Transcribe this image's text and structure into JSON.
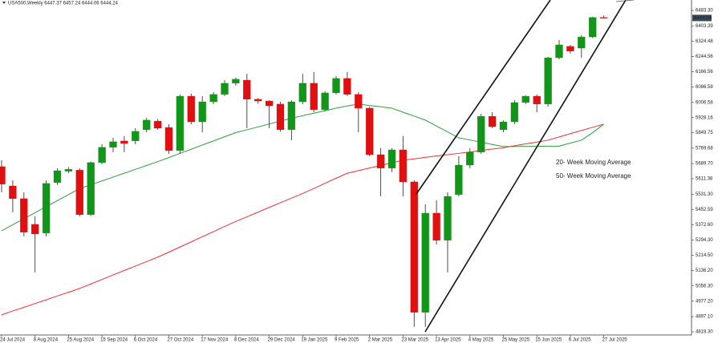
{
  "chart_data": {
    "type": "candlestick",
    "title": "USA500,Weekly 6447.37 6457.24 6444.06 6444.24",
    "categories": [
      "24 Jul 2024",
      null,
      null,
      "8 Aug 2024",
      null,
      null,
      "25 Aug 2024",
      null,
      null,
      "15 Sep 2024",
      null,
      null,
      "6 Oct 2024",
      null,
      null,
      "27 Oct 2024",
      null,
      null,
      "17 Nov 2024",
      null,
      null,
      "8 Dec 2024",
      null,
      null,
      "29 Dec 2024",
      null,
      null,
      "19 Jan 2025",
      null,
      null,
      "9 Feb 2025",
      null,
      null,
      "2 Mar 2025",
      null,
      null,
      "23 Mar 2025",
      null,
      null,
      "13 Apr 2025",
      null,
      null,
      "4 May 2025",
      null,
      null,
      "25 May 2025",
      null,
      null,
      "15 Jun 2025",
      null,
      null,
      "6 Jul 2025",
      null,
      null,
      "27 Jul 2025"
    ],
    "open": [
      5674,
      5574,
      5508,
      5375,
      5330,
      5591,
      5650,
      5656,
      5425,
      5695,
      5774,
      5807,
      5807,
      5865,
      5910,
      5877,
      5757,
      6039,
      5906,
      6010,
      6048,
      6106,
      6122,
      6023,
      6014,
      5998,
      5865,
      6010,
      6106,
      5969,
      6056,
      6131,
      6048,
      5977,
      5736,
      5666,
      5761,
      5595,
      4919,
      5433,
      5292,
      5529,
      5682,
      5749,
      5935,
      5865,
      5906,
      6006,
      6039,
      5998,
      6238,
      6297,
      6288,
      6346,
      6447.37
    ],
    "high": [
      5707,
      5603,
      5541,
      5417,
      5603,
      5665,
      5672,
      5666,
      5700,
      5790,
      5823,
      5832,
      5873,
      5927,
      5920,
      5894,
      6048,
      6052,
      6039,
      6060,
      6122,
      6135,
      6155,
      6030,
      6018,
      6010,
      6018,
      6155,
      6164,
      6065,
      6143,
      6164,
      6060,
      5985,
      5770,
      5770,
      5832,
      5604,
      5479,
      5500,
      5541,
      5728,
      5770,
      5948,
      5956,
      5914,
      6018,
      6043,
      6048,
      6243,
      6330,
      6305,
      6355,
      6450,
      6457.24
    ],
    "low": [
      5541,
      5437,
      5313,
      5126,
      5312,
      5580,
      5640,
      5416,
      5418,
      5686,
      5749,
      5749,
      5790,
      5852,
      5865,
      5740,
      5740,
      5894,
      5852,
      5998,
      6039,
      6093,
      5873,
      6000,
      5873,
      5855,
      5811,
      5998,
      5956,
      5960,
      6048,
      6039,
      5852,
      5728,
      5520,
      5645,
      5520,
      4844,
      4844,
      5271,
      5126,
      5520,
      5666,
      5740,
      5873,
      5852,
      5894,
      5998,
      5956,
      5985,
      6230,
      6260,
      6238,
      6340,
      6444.06
    ],
    "close": [
      5583,
      5508,
      5334,
      5325,
      5587,
      5653,
      5660,
      5425,
      5695,
      5774,
      5803,
      5794,
      5857,
      5915,
      5873,
      5757,
      6039,
      5906,
      6010,
      6048,
      6106,
      6127,
      6023,
      6014,
      5989,
      5865,
      6010,
      6106,
      5969,
      6056,
      6131,
      6048,
      5977,
      5736,
      5666,
      5761,
      5595,
      4919,
      5433,
      5292,
      5520,
      5682,
      5749,
      5935,
      5881,
      5906,
      6006,
      6039,
      5998,
      6238,
      6305,
      6272,
      6346,
      6447,
      6444.24
    ],
    "up_color": "#12961a",
    "down_color": "#e01010",
    "series": [
      {
        "name": "20- Week Moving Average",
        "color": "#2e9e3a",
        "values": [
          5342,
          5373,
          5404,
          5435,
          5467,
          5498,
          5529,
          5560,
          5580,
          5600,
          5620,
          5640,
          5660,
          5680,
          5700,
          5721,
          5743,
          5764,
          5786,
          5807,
          5829,
          5850,
          5865,
          5880,
          5895,
          5910,
          5925,
          5938,
          5951,
          5964,
          5977,
          5988,
          5998,
          5991,
          5984,
          5977,
          5956,
          5936,
          5915,
          5884,
          5854,
          5823,
          5812,
          5801,
          5789,
          5778,
          5778,
          5779,
          5779,
          5780,
          5780,
          5796,
          5811,
          5850,
          5894
        ]
      },
      {
        "name": "50- Week Moving Average",
        "color": "#f03030",
        "values": [
          4906,
          4926,
          4945,
          4965,
          4984,
          5004,
          5023,
          5043,
          5066,
          5089,
          5113,
          5136,
          5159,
          5182,
          5205,
          5231,
          5258,
          5284,
          5311,
          5337,
          5364,
          5390,
          5414,
          5438,
          5463,
          5487,
          5511,
          5535,
          5561,
          5588,
          5614,
          5640,
          5653,
          5667,
          5680,
          5694,
          5707,
          5714,
          5722,
          5729,
          5736,
          5743,
          5750,
          5758,
          5765,
          5772,
          5782,
          5792,
          5801,
          5811,
          5828,
          5845,
          5861,
          5878,
          5894
        ]
      }
    ],
    "last_price": 6444.24,
    "ylim": [
      4801.8,
      6537.3
    ],
    "yticks": [
      {
        "value": 6483.3,
        "label": "6483.30"
      },
      {
        "value": 6403.39,
        "label": "6403.39"
      },
      {
        "value": 6324.48,
        "label": "6324.48"
      },
      {
        "value": 6244.56,
        "label": "6244.56"
      },
      {
        "value": 6166.56,
        "label": "6166.56"
      },
      {
        "value": 6086.58,
        "label": "6086.58"
      },
      {
        "value": 6006.58,
        "label": "6006.58"
      },
      {
        "value": 5928.16,
        "label": "5928.16"
      },
      {
        "value": 5849.75,
        "label": "5849.75"
      },
      {
        "value": 5769.68,
        "label": "5769.68"
      },
      {
        "value": 5689.7,
        "label": "5689.70"
      },
      {
        "value": 5611.38,
        "label": "5611.38"
      },
      {
        "value": 5531.3,
        "label": "5531.30"
      },
      {
        "value": 5452.59,
        "label": "5452.59"
      },
      {
        "value": 5372.6,
        "label": "5372.60"
      },
      {
        "value": 5294.3,
        "label": "5294.30"
      },
      {
        "value": 5214.5,
        "label": "5214.50"
      },
      {
        "value": 5136.2,
        "label": "5136.20"
      },
      {
        "value": 5056.3,
        "label": "5056.30"
      },
      {
        "value": 4977.2,
        "label": "4977.20"
      },
      {
        "value": 4897.1,
        "label": "4897.10"
      },
      {
        "value": 4818.3,
        "label": "4818.30"
      }
    ]
  }
}
